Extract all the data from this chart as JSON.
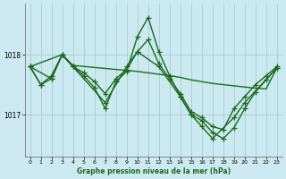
{
  "title": "Graphe pression niveau de la mer (hPa)",
  "bg_color": "#cce8f0",
  "grid_color": "#99cccc",
  "line_color": "#1a6b1a",
  "ylim": [
    1016.3,
    1018.85
  ],
  "xlim": [
    -0.5,
    23.5
  ],
  "yticks": [
    1017.0,
    1018.0
  ],
  "ytick_labels": [
    "1017",
    "1018"
  ],
  "xticks": [
    0,
    1,
    2,
    3,
    4,
    5,
    6,
    7,
    8,
    9,
    10,
    11,
    12,
    13,
    14,
    15,
    16,
    17,
    18,
    19,
    20,
    21,
    22,
    23
  ],
  "series": [
    {
      "x": [
        0,
        1,
        2,
        3,
        4,
        5,
        6,
        7,
        8,
        9,
        10,
        11,
        12,
        13,
        14,
        15,
        16,
        17,
        18,
        19,
        20,
        21,
        22,
        23
      ],
      "y": [
        1017.8,
        1017.5,
        1017.65,
        1018.0,
        1017.8,
        1017.7,
        1017.55,
        1017.35,
        1017.6,
        1017.75,
        1018.05,
        1018.25,
        1017.85,
        1017.6,
        1017.35,
        1017.05,
        1016.95,
        1016.8,
        1016.75,
        1017.1,
        1017.3,
        1017.5,
        1017.65,
        1017.8
      ],
      "marker": true
    },
    {
      "x": [
        0,
        1,
        2,
        3,
        4,
        5,
        6,
        7,
        8,
        9,
        10,
        11,
        12,
        13,
        14,
        15,
        16,
        17,
        18,
        19,
        20,
        21,
        22,
        23
      ],
      "y": [
        1017.8,
        1017.5,
        1017.6,
        1018.0,
        1017.8,
        1017.65,
        1017.45,
        1017.1,
        1017.55,
        1017.72,
        1018.3,
        1018.62,
        1018.05,
        1017.65,
        1017.3,
        1017.0,
        1016.9,
        1016.7,
        1016.6,
        1016.78,
        1017.1,
        1017.38,
        1017.58,
        1017.78
      ],
      "marker": true
    },
    {
      "x": [
        0,
        2,
        3,
        4,
        7,
        9,
        10,
        12,
        14,
        15,
        16,
        17,
        19,
        20,
        23
      ],
      "y": [
        1017.8,
        1017.6,
        1018.0,
        1017.8,
        1017.2,
        1017.8,
        1018.05,
        1017.8,
        1017.3,
        1017.0,
        1016.8,
        1016.6,
        1016.95,
        1017.2,
        1017.78
      ],
      "marker": true
    },
    {
      "x": [
        0,
        3,
        4,
        10,
        13,
        14,
        15,
        16,
        17,
        18,
        19,
        20,
        21,
        22,
        23
      ],
      "y": [
        1017.8,
        1018.0,
        1017.82,
        1017.72,
        1017.65,
        1017.62,
        1017.58,
        1017.55,
        1017.52,
        1017.5,
        1017.48,
        1017.46,
        1017.44,
        1017.43,
        1017.78
      ],
      "marker": false
    }
  ],
  "marker_size": 4,
  "linewidth": 1.0
}
